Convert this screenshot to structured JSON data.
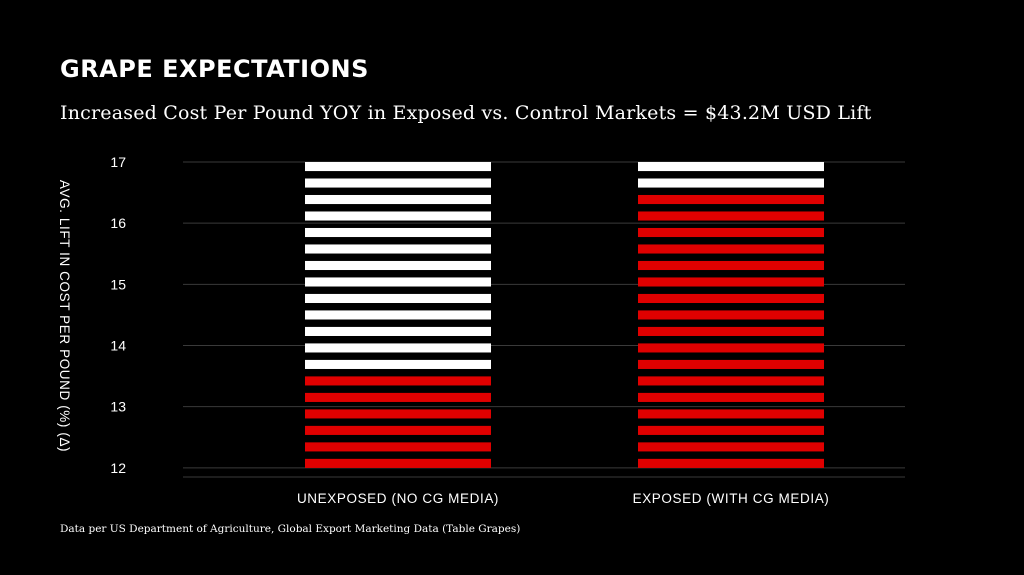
{
  "page": {
    "title": "GRAPE EXPECTATIONS",
    "subtitle": "Increased Cost Per Pound YOY in Exposed vs. Control Markets = $43.2M USD Lift",
    "source": "Data per US Department of Agriculture, Global Export Marketing Data (Table Grapes)"
  },
  "colors": {
    "background": "#000000",
    "accent": "#e00000",
    "track": "#ffffff",
    "grid": "#3a3a3a"
  },
  "chart_data": {
    "type": "bar",
    "title": "Increased Cost Per Pound YOY in Exposed vs. Control Markets = $43.2M USD Lift",
    "xlabel": "",
    "ylabel": "AVG. LIFT IN COST PER POUND (%) (Δ)",
    "ylim": [
      11.85,
      17
    ],
    "yticks": [
      12,
      13,
      14,
      15,
      16,
      17
    ],
    "grid": true,
    "categories": [
      "UNEXPOSED (NO CG MEDIA)",
      "EXPOSED (WITH CG MEDIA)"
    ],
    "values": [
      13.6,
      16.5
    ],
    "max": 17,
    "style": "striped"
  }
}
